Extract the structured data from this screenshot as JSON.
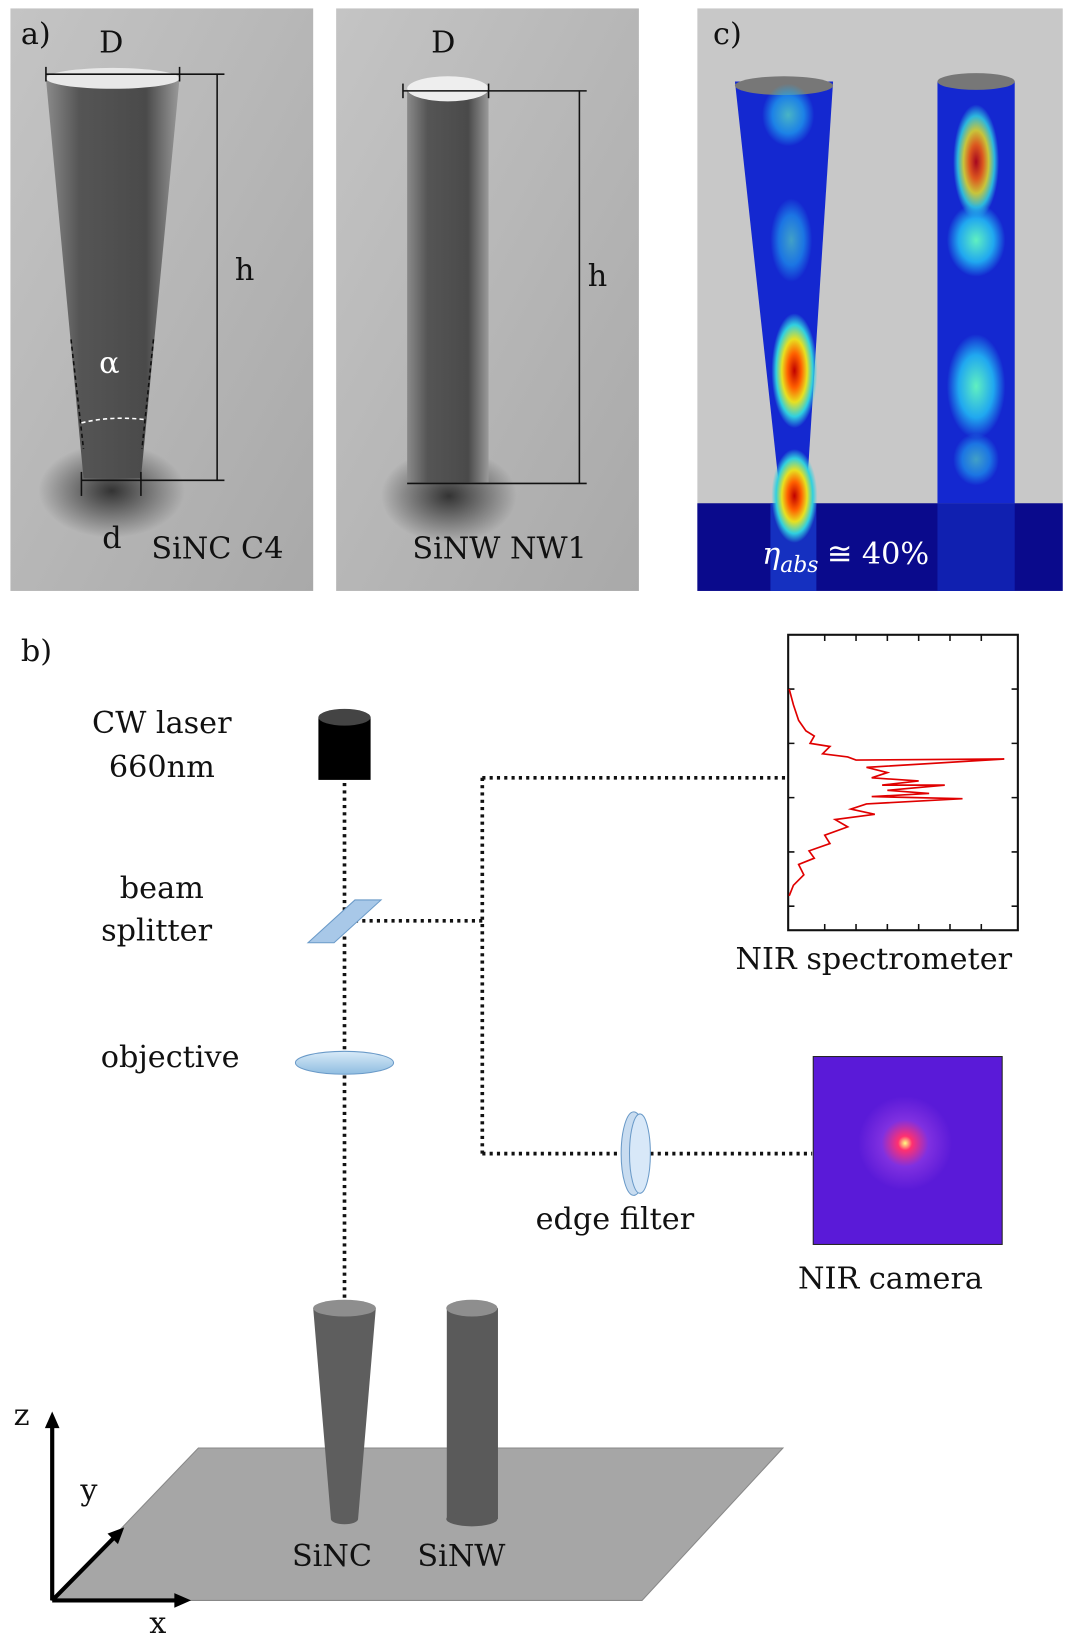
{
  "panel_a": {
    "label": "a)",
    "sinc": {
      "D": "D",
      "h": "h",
      "alpha": "α",
      "d": "d",
      "name": "SiNC C4"
    },
    "sinw": {
      "D": "D",
      "h": "h",
      "name": "SiNW NW1"
    }
  },
  "panel_c": {
    "label": "c)",
    "eta": "η",
    "eta_sub": "abs",
    "eta_value": "≅ 40%"
  },
  "panel_b": {
    "label": "b)",
    "laser": [
      "CW laser",
      "660nm"
    ],
    "beam_splitter": [
      "beam",
      "splitter"
    ],
    "objective": "objective",
    "spectrometer": "NIR spectrometer",
    "edge_filter": "edge filter",
    "camera": "NIR camera",
    "pillars": [
      "SiNC",
      "SiNW"
    ],
    "axes": {
      "z": "z",
      "y": "y",
      "x": "x"
    }
  }
}
